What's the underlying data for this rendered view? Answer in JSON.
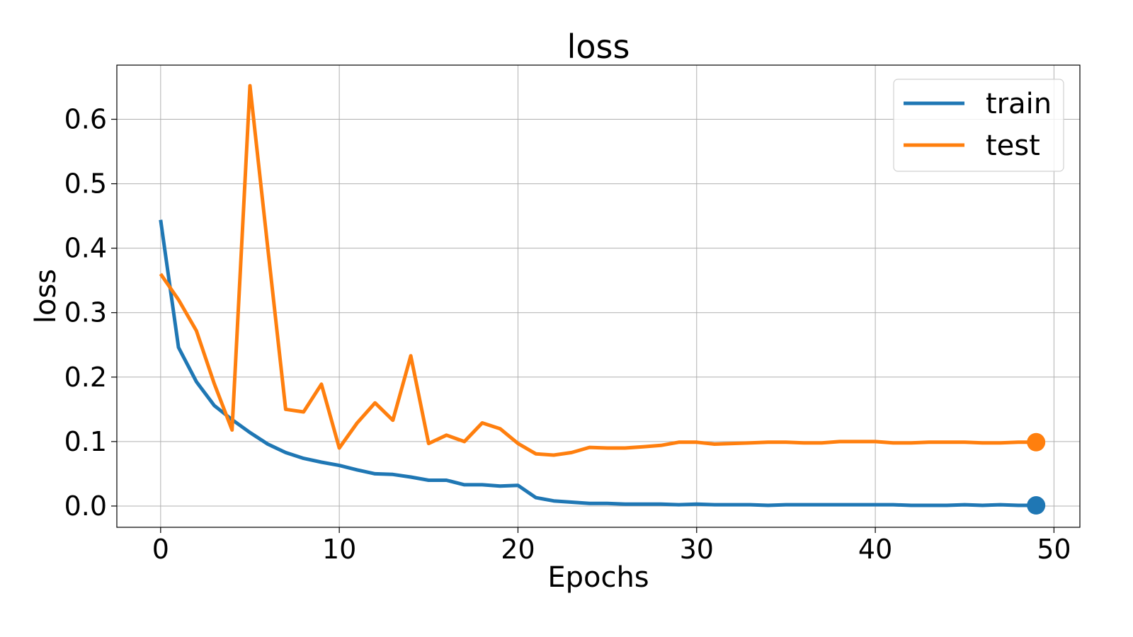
{
  "chart_data": {
    "type": "line",
    "title": "loss",
    "xlabel": "Epochs",
    "ylabel": "loss",
    "xlim": [
      -2.45,
      51.45
    ],
    "ylim": [
      -0.033,
      0.684
    ],
    "xticks": [
      0,
      10,
      20,
      30,
      40,
      50
    ],
    "xtick_labels": [
      "0",
      "10",
      "20",
      "30",
      "40",
      "50"
    ],
    "yticks": [
      0.0,
      0.1,
      0.2,
      0.3,
      0.4,
      0.5,
      0.6
    ],
    "ytick_labels": [
      "0.0",
      "0.1",
      "0.2",
      "0.3",
      "0.4",
      "0.5",
      "0.6"
    ],
    "grid": true,
    "legend_position": "top-right",
    "x": [
      0,
      1,
      2,
      3,
      4,
      5,
      6,
      7,
      8,
      9,
      10,
      11,
      12,
      13,
      14,
      15,
      16,
      17,
      18,
      19,
      20,
      21,
      22,
      23,
      24,
      25,
      26,
      27,
      28,
      29,
      30,
      31,
      32,
      33,
      34,
      35,
      36,
      37,
      38,
      39,
      40,
      41,
      42,
      43,
      44,
      45,
      46,
      47,
      48,
      49
    ],
    "series": [
      {
        "name": "train",
        "color": "#1f77b4",
        "end_marker": true,
        "values": [
          0.444,
          0.246,
          0.193,
          0.156,
          0.134,
          0.114,
          0.096,
          0.083,
          0.074,
          0.068,
          0.063,
          0.056,
          0.05,
          0.049,
          0.045,
          0.04,
          0.04,
          0.033,
          0.033,
          0.031,
          0.032,
          0.013,
          0.008,
          0.006,
          0.004,
          0.004,
          0.003,
          0.003,
          0.003,
          0.002,
          0.003,
          0.002,
          0.002,
          0.002,
          0.001,
          0.002,
          0.002,
          0.002,
          0.002,
          0.002,
          0.002,
          0.002,
          0.001,
          0.001,
          0.001,
          0.002,
          0.001,
          0.002,
          0.001,
          0.001
        ]
      },
      {
        "name": "test",
        "color": "#ff7f0e",
        "end_marker": true,
        "values": [
          0.36,
          0.32,
          0.272,
          0.19,
          0.118,
          0.652,
          0.4,
          0.15,
          0.146,
          0.189,
          0.09,
          0.129,
          0.16,
          0.133,
          0.233,
          0.097,
          0.11,
          0.1,
          0.129,
          0.12,
          0.097,
          0.081,
          0.079,
          0.083,
          0.091,
          0.09,
          0.09,
          0.092,
          0.094,
          0.099,
          0.099,
          0.096,
          0.097,
          0.098,
          0.099,
          0.099,
          0.098,
          0.098,
          0.1,
          0.1,
          0.1,
          0.098,
          0.098,
          0.099,
          0.099,
          0.099,
          0.098,
          0.098,
          0.099,
          0.099
        ]
      }
    ]
  }
}
